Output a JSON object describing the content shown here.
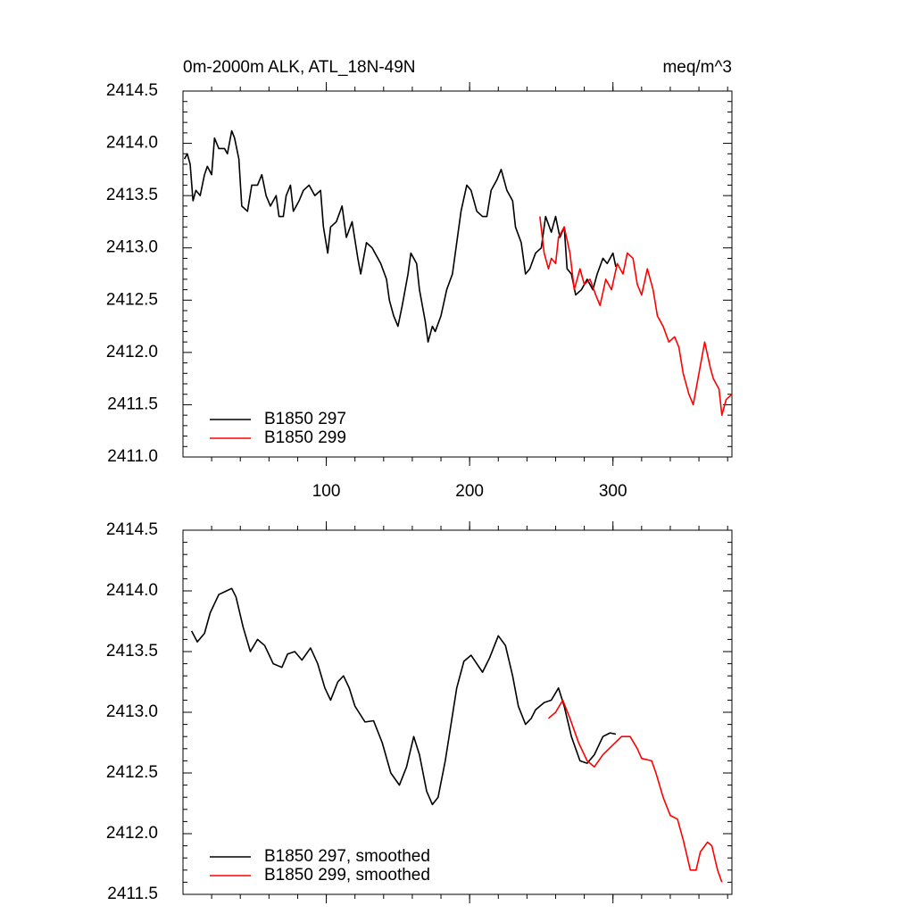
{
  "chart_data": [
    {
      "type": "line",
      "title": "0m-2000m ALK, ATL_18N-49N",
      "units": "meq/m^3",
      "xlim": [
        0,
        383
      ],
      "xticks": [
        100,
        200,
        300
      ],
      "xtick_labels": true,
      "ylim": [
        2411,
        2414.5
      ],
      "yticks": [
        {
          "value": 2411,
          "label": "2411.0"
        },
        2411.5,
        {
          "value": 2412,
          "label": "2412.0"
        },
        2412.5,
        {
          "value": 2413,
          "label": "2413.0"
        },
        2413.5,
        {
          "value": 2414,
          "label": "2414.0"
        },
        2414.5
      ],
      "legend": "lower left",
      "series": [
        {
          "name": "B1850 297",
          "color": "#000000",
          "x": [
            1,
            3,
            5,
            7,
            9,
            12,
            15,
            17,
            20,
            22,
            25,
            29,
            31,
            34,
            36,
            39,
            41,
            45,
            48,
            52,
            55,
            58,
            61,
            65,
            67,
            70,
            72,
            75,
            77,
            81,
            84,
            88,
            92,
            96,
            98,
            101,
            103,
            107,
            111,
            114,
            118,
            122,
            124,
            128,
            132,
            134,
            138,
            142,
            144,
            147,
            150,
            153,
            157,
            159,
            163,
            165,
            169,
            171,
            174,
            176,
            180,
            184,
            188,
            191,
            194,
            198,
            201,
            205,
            209,
            212,
            215,
            219,
            222,
            226,
            230,
            232,
            236,
            239,
            242,
            246,
            250,
            253,
            257,
            260,
            263,
            266,
            268,
            271,
            274,
            278,
            282,
            286,
            289,
            293,
            296,
            300,
            302
          ],
          "values": [
            2413.85,
            2413.9,
            2413.8,
            2413.45,
            2413.55,
            2413.5,
            2413.7,
            2413.78,
            2413.7,
            2414.05,
            2413.95,
            2413.95,
            2413.9,
            2414.12,
            2414.05,
            2413.85,
            2413.4,
            2413.35,
            2413.6,
            2413.6,
            2413.7,
            2413.5,
            2413.4,
            2413.5,
            2413.3,
            2413.3,
            2413.5,
            2413.6,
            2413.35,
            2413.45,
            2413.55,
            2413.6,
            2413.5,
            2413.55,
            2413.2,
            2412.95,
            2413.2,
            2413.25,
            2413.4,
            2413.1,
            2413.25,
            2412.9,
            2412.75,
            2413.05,
            2413.0,
            2412.95,
            2412.85,
            2412.7,
            2412.5,
            2412.35,
            2412.25,
            2412.45,
            2412.75,
            2412.95,
            2412.85,
            2412.6,
            2412.3,
            2412.1,
            2412.25,
            2412.2,
            2412.35,
            2412.6,
            2412.75,
            2413.05,
            2413.35,
            2413.6,
            2413.55,
            2413.35,
            2413.3,
            2413.3,
            2413.55,
            2413.65,
            2413.75,
            2413.55,
            2413.45,
            2413.2,
            2413.05,
            2412.75,
            2412.8,
            2412.95,
            2413.0,
            2413.3,
            2413.15,
            2413.3,
            2413.1,
            2413.2,
            2412.8,
            2412.75,
            2412.55,
            2412.6,
            2412.7,
            2412.6,
            2412.75,
            2412.9,
            2412.85,
            2412.95,
            2412.82
          ]
        },
        {
          "name": "B1850 299",
          "color": "#ff0000",
          "x": [
            249,
            252,
            255,
            257,
            260,
            262,
            266,
            270,
            273,
            277,
            280,
            284,
            288,
            291,
            295,
            299,
            303,
            307,
            310,
            314,
            317,
            320,
            324,
            328,
            331,
            335,
            339,
            343,
            346,
            349,
            353,
            356,
            360,
            364,
            368,
            370,
            374,
            376,
            379,
            383
          ],
          "values": [
            2413.3,
            2412.95,
            2412.8,
            2412.9,
            2412.85,
            2413.1,
            2413.2,
            2412.95,
            2412.6,
            2412.8,
            2412.65,
            2412.7,
            2412.55,
            2412.45,
            2412.7,
            2412.6,
            2412.85,
            2412.75,
            2412.95,
            2412.9,
            2412.65,
            2412.55,
            2412.8,
            2412.6,
            2412.35,
            2412.25,
            2412.1,
            2412.15,
            2412.05,
            2411.8,
            2411.6,
            2411.5,
            2411.8,
            2412.1,
            2411.85,
            2411.75,
            2411.65,
            2411.4,
            2411.55,
            2411.6
          ]
        }
      ]
    },
    {
      "type": "line",
      "xlim": [
        0,
        383
      ],
      "xticks": [
        100,
        200,
        300
      ],
      "xtick_labels": false,
      "ylim": [
        2411.5,
        2414.5
      ],
      "yticks": [
        2411.5,
        {
          "value": 2412,
          "label": "2412.0"
        },
        2412.5,
        {
          "value": 2413,
          "label": "2413.0"
        },
        2413.5,
        {
          "value": 2414,
          "label": "2414.0"
        },
        2414.5
      ],
      "legend": "lower left",
      "series": [
        {
          "name": "B1850 297, smoothed",
          "color": "#000000",
          "x": [
            6,
            10,
            15,
            19,
            25,
            34,
            37,
            42,
            47,
            52,
            57,
            63,
            69,
            73,
            78,
            83,
            89,
            94,
            99,
            103,
            108,
            112,
            116,
            120,
            127,
            133,
            139,
            145,
            151,
            156,
            161,
            165,
            170,
            174,
            178,
            183,
            187,
            191,
            196,
            201,
            209,
            214,
            220,
            225,
            230,
            234,
            239,
            243,
            246,
            252,
            257,
            262,
            266,
            271,
            277,
            282,
            287,
            293,
            298,
            302
          ],
          "values": [
            2413.67,
            2413.58,
            2413.65,
            2413.82,
            2413.97,
            2414.02,
            2413.95,
            2413.7,
            2413.5,
            2413.6,
            2413.55,
            2413.4,
            2413.37,
            2413.48,
            2413.5,
            2413.43,
            2413.53,
            2413.4,
            2413.2,
            2413.1,
            2413.25,
            2413.3,
            2413.2,
            2413.05,
            2412.92,
            2412.93,
            2412.75,
            2412.5,
            2412.4,
            2412.55,
            2412.8,
            2412.65,
            2412.35,
            2412.24,
            2412.3,
            2412.6,
            2412.9,
            2413.2,
            2413.42,
            2413.47,
            2413.33,
            2413.45,
            2413.63,
            2413.55,
            2413.3,
            2413.05,
            2412.9,
            2412.95,
            2413.02,
            2413.08,
            2413.1,
            2413.2,
            2413.05,
            2412.8,
            2412.6,
            2412.58,
            2412.65,
            2412.8,
            2412.83,
            2412.82
          ]
        },
        {
          "name": "B1850 299, smoothed",
          "color": "#ff0000",
          "x": [
            255,
            260,
            265,
            270,
            276,
            282,
            287,
            293,
            299,
            306,
            312,
            317,
            320,
            327,
            330,
            335,
            340,
            345,
            349,
            354,
            358,
            361,
            366,
            369,
            373,
            376
          ],
          "values": [
            2412.95,
            2413.0,
            2413.1,
            2412.95,
            2412.75,
            2412.6,
            2412.55,
            2412.65,
            2412.72,
            2412.8,
            2412.8,
            2412.7,
            2412.62,
            2412.6,
            2412.5,
            2412.3,
            2412.15,
            2412.12,
            2411.95,
            2411.7,
            2411.7,
            2411.85,
            2411.93,
            2411.9,
            2411.7,
            2411.6
          ]
        }
      ]
    }
  ]
}
